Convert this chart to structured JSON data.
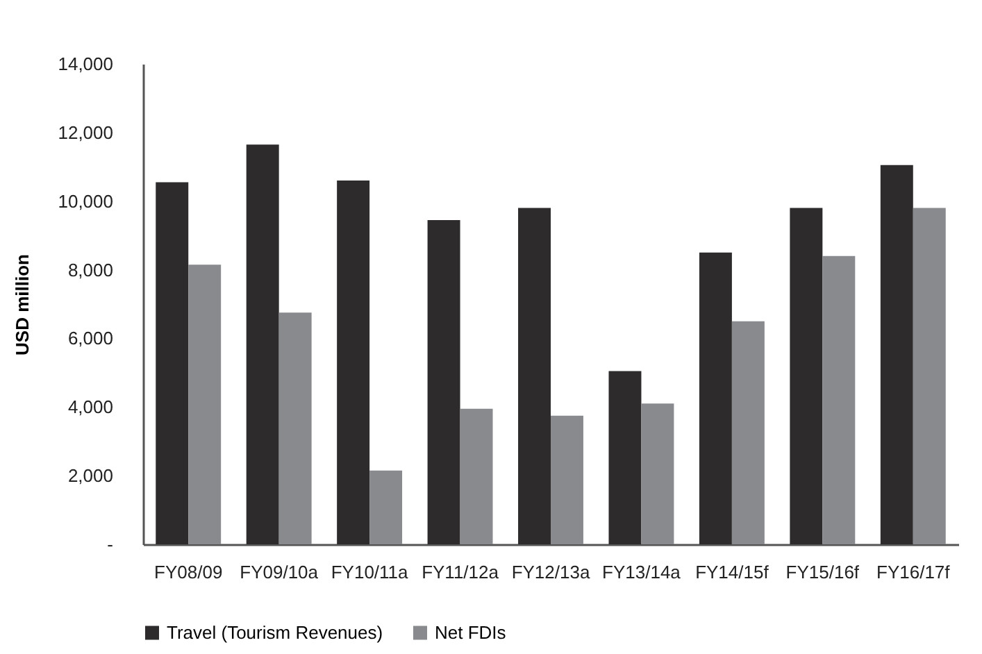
{
  "chart_data": {
    "type": "bar",
    "ylabel": "USD million",
    "categories": [
      "FY08/09",
      "FY09/10a",
      "FY10/11a",
      "FY11/12a",
      "FY12/13a",
      "FY13/14a",
      "FY14/15f",
      "FY15/16f",
      "FY16/17f"
    ],
    "series": [
      {
        "name": "Travel (Tourism Revenues)",
        "color": "#2d2b2c",
        "values": [
          10550,
          11650,
          10600,
          9450,
          9800,
          5050,
          8500,
          9800,
          11050
        ]
      },
      {
        "name": "Net FDIs",
        "color": "#898a8e",
        "values": [
          8150,
          6750,
          2150,
          3950,
          3750,
          4100,
          6500,
          8400,
          9800
        ]
      }
    ],
    "ylim": [
      0,
      14000
    ],
    "yticks": [
      {
        "value": 0,
        "label": "-"
      },
      {
        "value": 2000,
        "label": "2,000"
      },
      {
        "value": 4000,
        "label": "4,000"
      },
      {
        "value": 6000,
        "label": "6,000"
      },
      {
        "value": 8000,
        "label": "8,000"
      },
      {
        "value": 10000,
        "label": "10,000"
      },
      {
        "value": 12000,
        "label": "12,000"
      },
      {
        "value": 14000,
        "label": "14,000"
      }
    ],
    "grid": false,
    "legend": "bottom"
  }
}
